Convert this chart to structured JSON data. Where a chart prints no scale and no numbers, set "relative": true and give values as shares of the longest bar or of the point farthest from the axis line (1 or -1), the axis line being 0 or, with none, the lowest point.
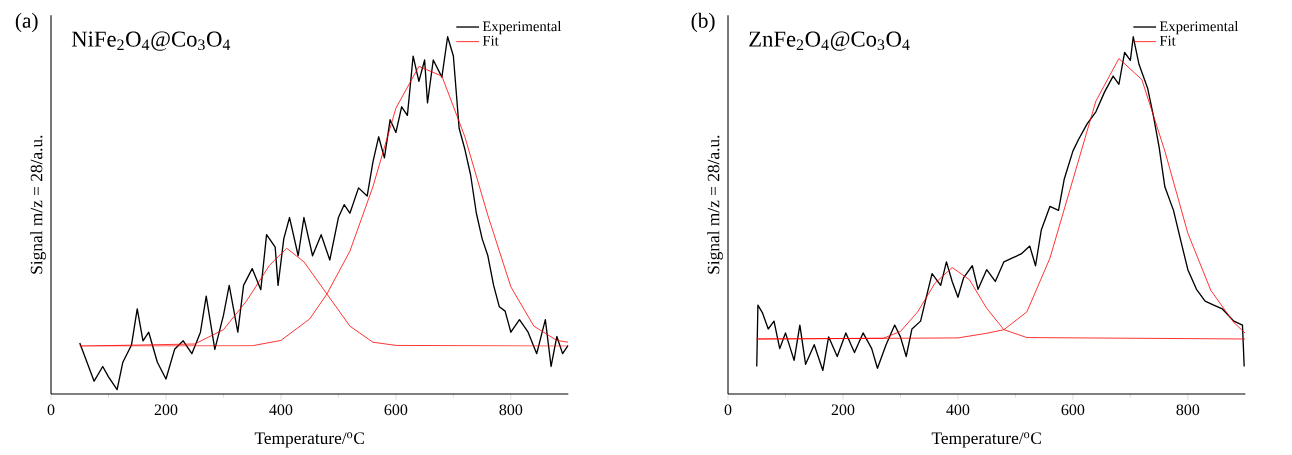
{
  "chart_data": [
    {
      "type": "line",
      "title": "(a)",
      "subtitle": "NiFe$_{2}$O$_{4}$@Co$_{3}$O$_{4}$",
      "xlabel": "Temperature/$^{o}$C",
      "ylabel": "Signal m/z = 28/a.u.",
      "xlim": [
        0,
        900
      ],
      "xticks": [
        0,
        200,
        400,
        600,
        800
      ],
      "relative": true,
      "legend": "top right",
      "series": [
        {
          "name": "Experimental",
          "color": "#000000",
          "x": [
            50,
            60,
            75,
            90,
            100,
            115,
            125,
            140,
            150,
            160,
            170,
            185,
            200,
            215,
            230,
            245,
            260,
            270,
            285,
            300,
            310,
            325,
            335,
            350,
            365,
            375,
            390,
            395,
            405,
            415,
            430,
            440,
            455,
            470,
            485,
            500,
            510,
            520,
            535,
            550,
            560,
            570,
            580,
            590,
            600,
            610,
            620,
            630,
            640,
            650,
            655,
            665,
            680,
            690,
            700,
            710,
            720,
            730,
            740,
            750,
            760,
            770,
            780,
            790,
            800,
            815,
            830,
            845,
            860,
            870,
            880,
            890,
            900
          ],
          "values": [
            0.143,
            0.1,
            0.036,
            0.077,
            0.048,
            0.012,
            0.089,
            0.137,
            0.238,
            0.149,
            0.173,
            0.089,
            0.042,
            0.125,
            0.149,
            0.113,
            0.173,
            0.274,
            0.125,
            0.22,
            0.304,
            0.173,
            0.304,
            0.351,
            0.292,
            0.446,
            0.411,
            0.304,
            0.435,
            0.494,
            0.387,
            0.494,
            0.387,
            0.446,
            0.375,
            0.494,
            0.53,
            0.506,
            0.577,
            0.554,
            0.649,
            0.72,
            0.661,
            0.768,
            0.732,
            0.804,
            0.78,
            0.946,
            0.875,
            0.935,
            0.815,
            0.935,
            0.887,
            1.0,
            0.946,
            0.744,
            0.685,
            0.613,
            0.506,
            0.435,
            0.387,
            0.304,
            0.244,
            0.232,
            0.173,
            0.208,
            0.173,
            0.113,
            0.208,
            0.077,
            0.161,
            0.113,
            0.137
          ]
        },
        {
          "name": "Fit",
          "color": "#ff0000",
          "x": [
            50,
            250,
            300,
            340,
            380,
            410,
            440,
            480,
            520,
            560,
            600,
            900
          ],
          "values": [
            0.134,
            0.14,
            0.18,
            0.26,
            0.36,
            0.408,
            0.37,
            0.28,
            0.19,
            0.145,
            0.136,
            0.134
          ]
        },
        {
          "color": "#ff0000",
          "x": [
            50,
            350,
            400,
            450,
            480,
            520,
            560,
            600,
            640,
            680,
            720,
            760,
            800,
            840,
            880,
            900
          ],
          "values": [
            0.134,
            0.135,
            0.15,
            0.21,
            0.28,
            0.4,
            0.58,
            0.8,
            0.917,
            0.89,
            0.72,
            0.5,
            0.3,
            0.19,
            0.15,
            0.145
          ]
        }
      ]
    },
    {
      "type": "line",
      "title": "(b)",
      "subtitle": "ZnFe$_{2}$O$_{4}$@Co$_{3}$O$_{4}$",
      "xlabel": "Temperature/$^{o}$C",
      "ylabel": "Signal m/z = 28/a.u.",
      "xlim": [
        0,
        900
      ],
      "xticks": [
        0,
        200,
        400,
        600,
        800
      ],
      "relative": true,
      "legend": "top right",
      "series": [
        {
          "name": "Experimental",
          "color": "#000000",
          "x": [
            50,
            52,
            60,
            70,
            80,
            90,
            100,
            115,
            125,
            135,
            150,
            165,
            175,
            190,
            205,
            220,
            235,
            250,
            260,
            275,
            290,
            300,
            310,
            320,
            335,
            345,
            355,
            370,
            380,
            390,
            400,
            410,
            425,
            435,
            450,
            465,
            480,
            495,
            510,
            525,
            535,
            545,
            560,
            575,
            585,
            600,
            610,
            625,
            640,
            655,
            670,
            680,
            690,
            700,
            705,
            715,
            730,
            740,
            750,
            760,
            775,
            790,
            800,
            815,
            830,
            845,
            860,
            880,
            895,
            898
          ],
          "values": [
            0.077,
            0.249,
            0.227,
            0.182,
            0.204,
            0.127,
            0.171,
            0.094,
            0.193,
            0.083,
            0.138,
            0.066,
            0.16,
            0.105,
            0.171,
            0.116,
            0.171,
            0.127,
            0.072,
            0.138,
            0.193,
            0.16,
            0.105,
            0.182,
            0.204,
            0.271,
            0.337,
            0.304,
            0.37,
            0.315,
            0.271,
            0.326,
            0.359,
            0.293,
            0.348,
            0.315,
            0.37,
            0.381,
            0.392,
            0.414,
            0.359,
            0.459,
            0.525,
            0.514,
            0.602,
            0.68,
            0.713,
            0.757,
            0.79,
            0.845,
            0.89,
            0.867,
            0.956,
            0.934,
            1.0,
            0.923,
            0.856,
            0.779,
            0.691,
            0.58,
            0.514,
            0.414,
            0.348,
            0.293,
            0.26,
            0.249,
            0.238,
            0.204,
            0.193,
            0.077
          ]
        },
        {
          "name": "Fit",
          "color": "#ff0000",
          "x": [
            50,
            270,
            300,
            330,
            360,
            390,
            420,
            450,
            480,
            520,
            900
          ],
          "values": [
            0.154,
            0.156,
            0.175,
            0.23,
            0.31,
            0.354,
            0.32,
            0.24,
            0.18,
            0.158,
            0.154
          ]
        },
        {
          "color": "#ff0000",
          "x": [
            50,
            400,
            450,
            480,
            520,
            560,
            600,
            640,
            680,
            720,
            760,
            800,
            840,
            880,
            900
          ],
          "values": [
            0.154,
            0.157,
            0.17,
            0.18,
            0.23,
            0.38,
            0.6,
            0.82,
            0.939,
            0.88,
            0.68,
            0.45,
            0.29,
            0.2,
            0.17
          ]
        }
      ]
    }
  ]
}
